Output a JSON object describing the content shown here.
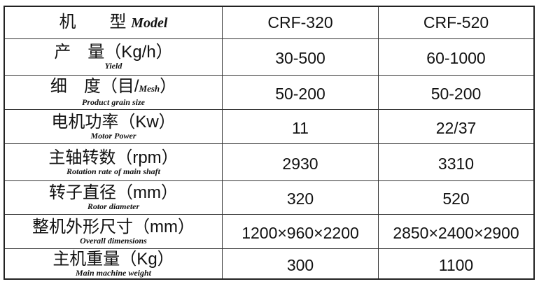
{
  "header": {
    "label_cn": "机　　型",
    "label_en": "Model",
    "models": [
      "CRF-320",
      "CRF-520"
    ]
  },
  "rows": [
    {
      "cn": "产　量",
      "unit": "（Kg/h）",
      "en": "Yield",
      "values": [
        "30-500",
        "60-1000"
      ]
    },
    {
      "cn": "细　度（目/",
      "unit_en": "Mesh",
      "unit_close": "）",
      "en": "Product grain size",
      "values": [
        "50-200",
        "50-200"
      ]
    },
    {
      "cn": "电机功率",
      "unit": "（Kw）",
      "en": "Motor Power",
      "values": [
        "11",
        "22/37"
      ]
    },
    {
      "cn": "主轴转数",
      "unit": "（rpm）",
      "en": "Rotation rate of main shaft",
      "values": [
        "2930",
        "3310"
      ]
    },
    {
      "cn": "转子直径",
      "unit": "（mm）",
      "en": "Rotor diameter",
      "values": [
        "320",
        "520"
      ]
    },
    {
      "cn": "整机外形尺寸",
      "unit": "（mm）",
      "en": "Overall dimensions",
      "values": [
        "1200×960×2200",
        "2850×2400×2900"
      ]
    },
    {
      "cn": "主机重量",
      "unit": "（Kg）",
      "en": "Main machine weight",
      "values": [
        "300",
        "1100"
      ]
    }
  ]
}
